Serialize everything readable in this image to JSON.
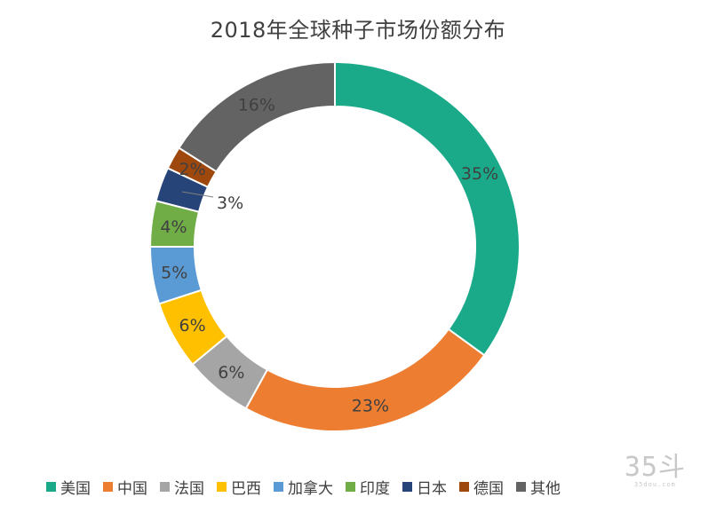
{
  "chart_data": {
    "type": "pie",
    "variant": "donut",
    "title": "2018年全球种子市场份额分布",
    "categories": [
      "美国",
      "中国",
      "法国",
      "巴西",
      "加拿大",
      "印度",
      "日本",
      "德国",
      "其他"
    ],
    "values": [
      35,
      23,
      6,
      6,
      5,
      4,
      3,
      2,
      16
    ],
    "labels": [
      "35%",
      "23%",
      "6%",
      "6%",
      "5%",
      "4%",
      "3%",
      "2%",
      "16%"
    ],
    "colors": [
      "#1AAA8A",
      "#ED7D31",
      "#A5A5A5",
      "#FFC000",
      "#5B9BD5",
      "#70AD47",
      "#264478",
      "#9E480E",
      "#636363"
    ],
    "legend_position": "bottom",
    "start": "12 o'clock, clockwise"
  },
  "watermark": {
    "big": "35斗",
    "small": "35dou.com"
  }
}
